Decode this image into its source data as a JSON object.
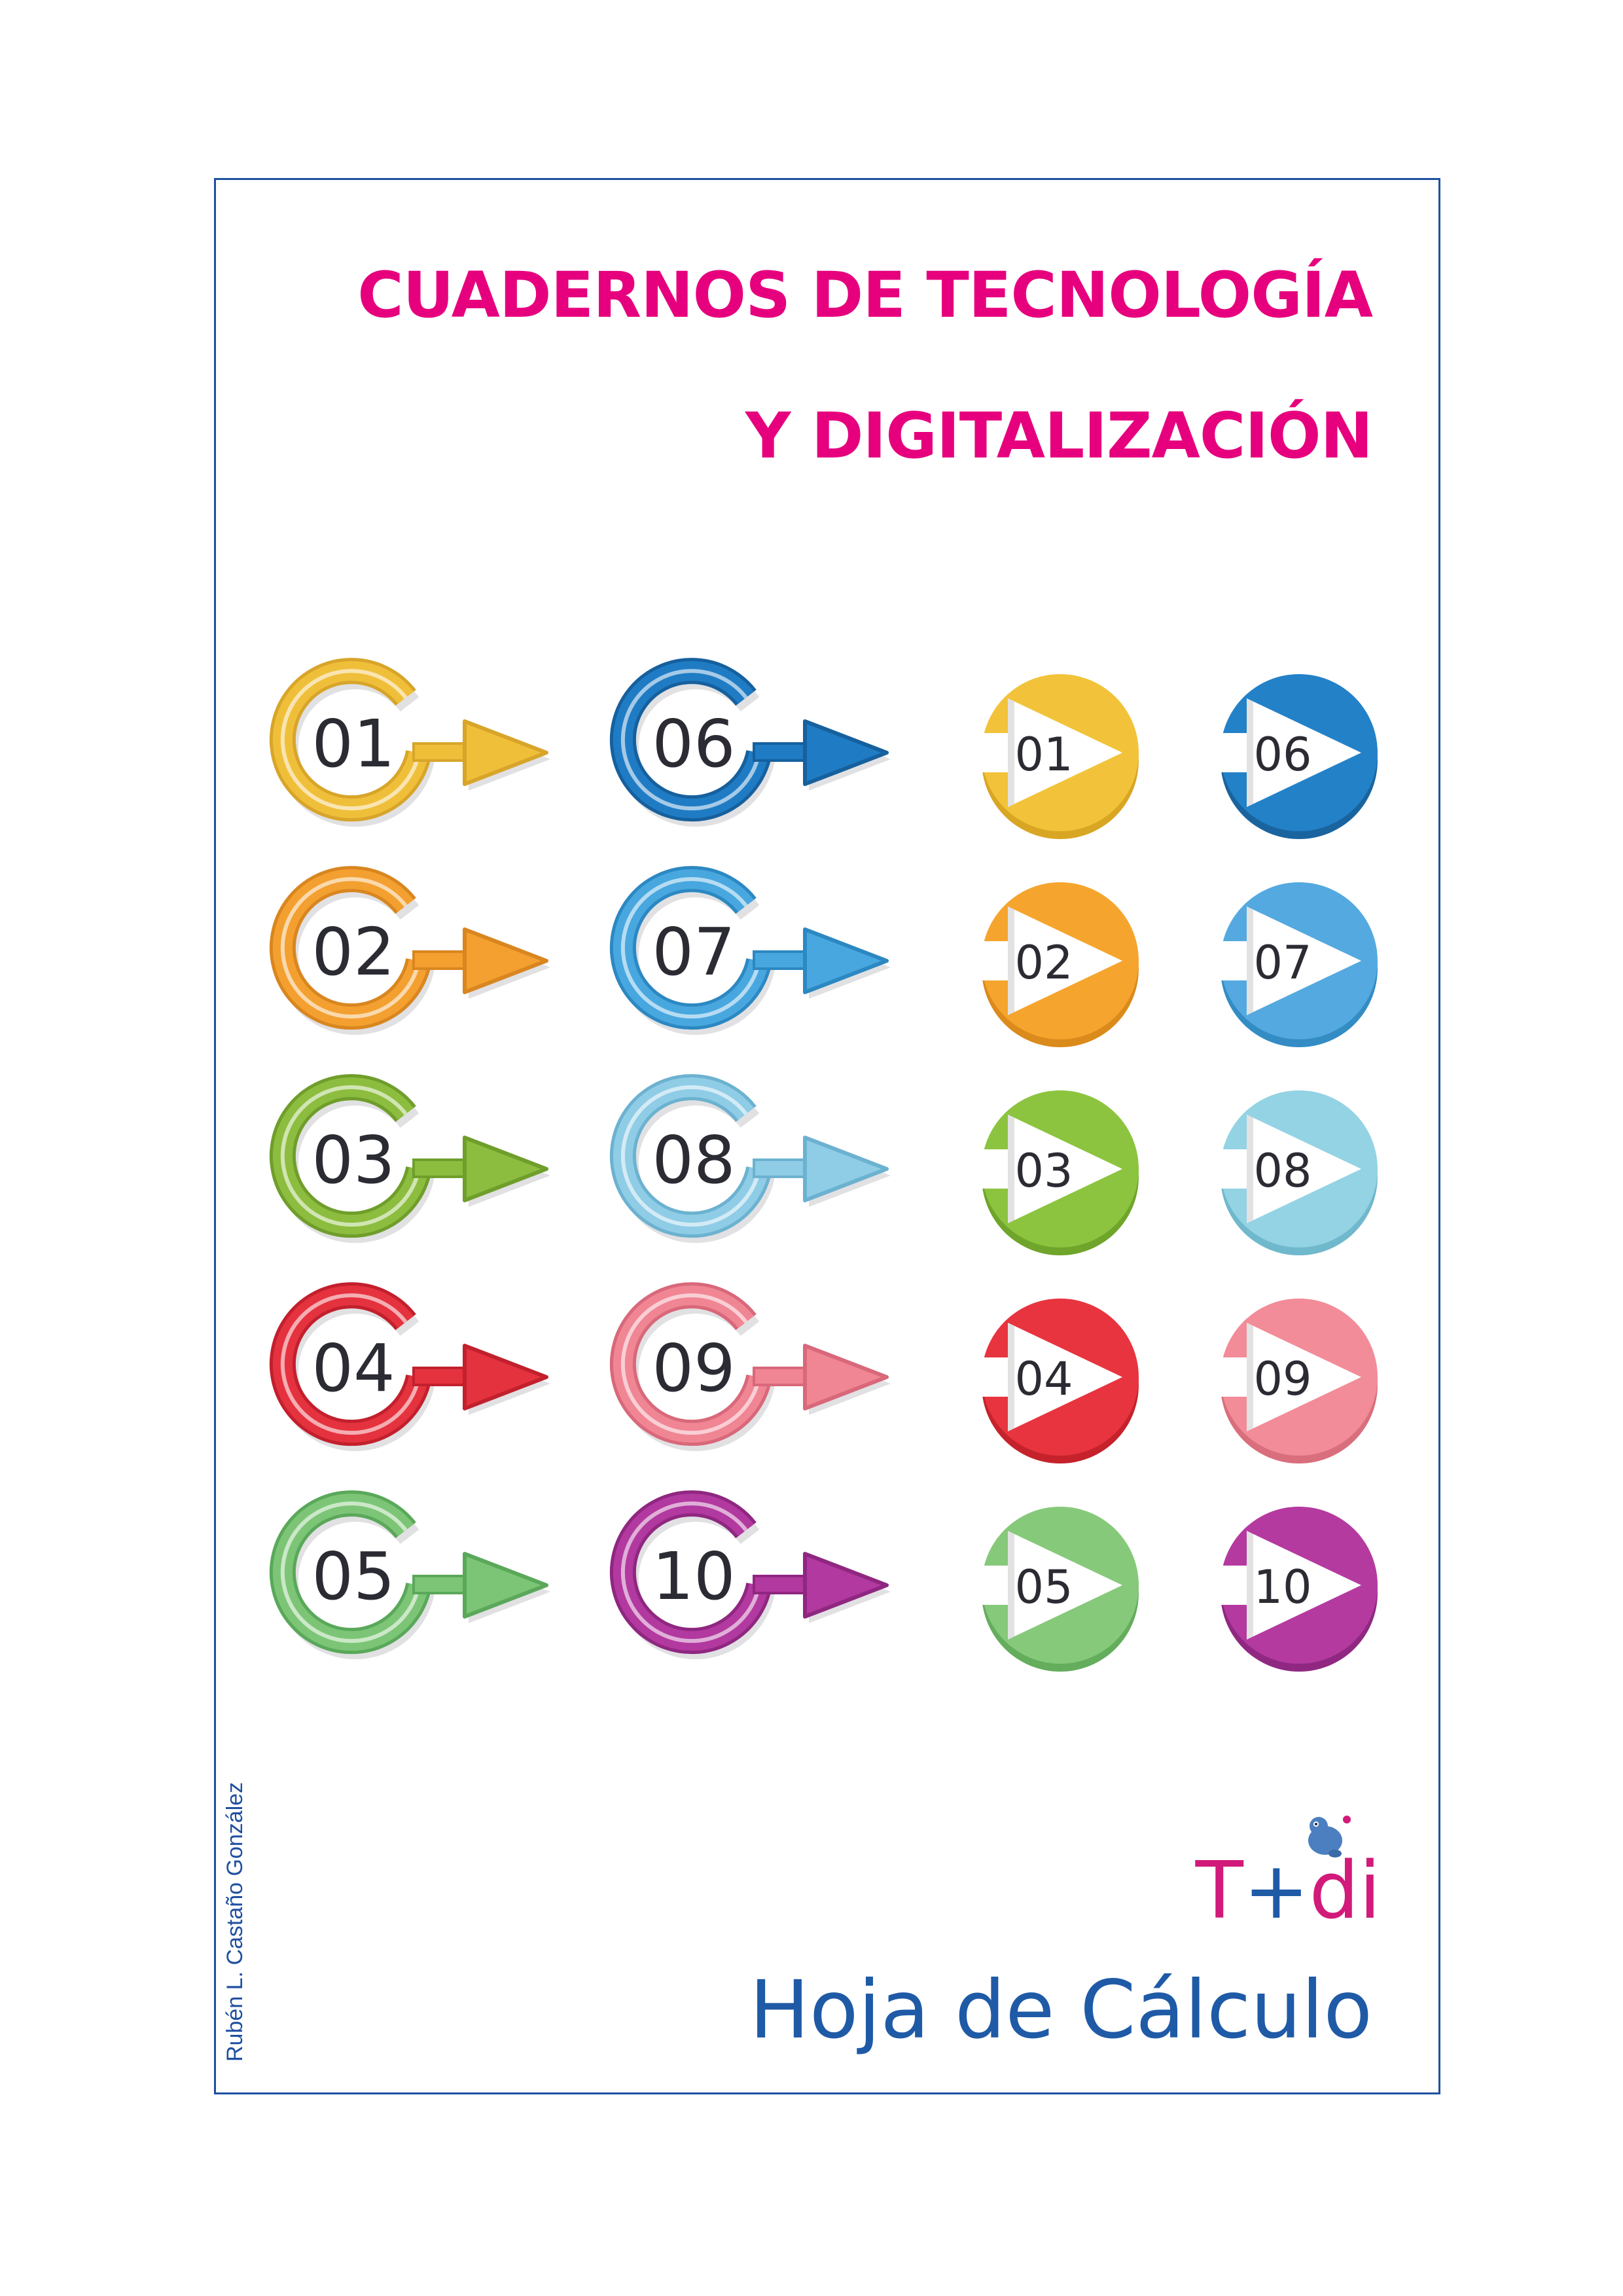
{
  "cover": {
    "title_line1": "CUADERNOS DE TECNOLOGÍA",
    "title_line2": "Y DIGITALIZACIÓN",
    "author": "Rubén L. Castaño González",
    "logo": {
      "t": "T",
      "plus": "+",
      "di": "di"
    },
    "subject": "Hoja de Cálculo"
  },
  "colors": {
    "title": "#e6007e",
    "frame": "#1f4fa0",
    "subject": "#1f5aa6",
    "logo_t": "#d11a7a",
    "logo_plus": "#1f5aa6",
    "logo_di": "#d11a7a"
  },
  "ring_badges": [
    {
      "label": "01",
      "color": "#f0bf3a",
      "dark": "#d8a52a",
      "icon": "ring-arrow-icon"
    },
    {
      "label": "02",
      "color": "#f3a030",
      "dark": "#d98620",
      "icon": "ring-arrow-icon"
    },
    {
      "label": "03",
      "color": "#8cbd3f",
      "dark": "#6f9e2b",
      "icon": "ring-arrow-icon"
    },
    {
      "label": "04",
      "color": "#e5323f",
      "dark": "#c2202d",
      "icon": "ring-arrow-icon"
    },
    {
      "label": "05",
      "color": "#7dc576",
      "dark": "#5aa85a",
      "icon": "ring-arrow-icon"
    },
    {
      "label": "06",
      "color": "#1f7cc4",
      "dark": "#16609e",
      "icon": "ring-arrow-icon"
    },
    {
      "label": "07",
      "color": "#48a7df",
      "dark": "#2c88c2",
      "icon": "ring-arrow-icon"
    },
    {
      "label": "08",
      "color": "#8fcce6",
      "dark": "#6cb2d0",
      "icon": "ring-arrow-icon"
    },
    {
      "label": "09",
      "color": "#f08593",
      "dark": "#d8687a",
      "icon": "ring-arrow-icon"
    },
    {
      "label": "10",
      "color": "#b2399f",
      "dark": "#8f2781",
      "icon": "ring-arrow-icon"
    }
  ],
  "play_discs": [
    {
      "label": "01",
      "color": "#f2c33a",
      "dark": "#d9a624",
      "icon": "play-disc-icon"
    },
    {
      "label": "02",
      "color": "#f5a52e",
      "dark": "#db8a1c",
      "icon": "play-disc-icon"
    },
    {
      "label": "03",
      "color": "#8cc43f",
      "dark": "#6ea52a",
      "icon": "play-disc-icon"
    },
    {
      "label": "04",
      "color": "#e8343f",
      "dark": "#c5222c",
      "icon": "play-disc-icon"
    },
    {
      "label": "05",
      "color": "#86c97a",
      "dark": "#64ad5c",
      "icon": "play-disc-icon"
    },
    {
      "label": "06",
      "color": "#2381c8",
      "dark": "#19649f",
      "icon": "play-disc-icon"
    },
    {
      "label": "07",
      "color": "#54a9e0",
      "dark": "#348cc4",
      "icon": "play-disc-icon"
    },
    {
      "label": "08",
      "color": "#93d3e4",
      "dark": "#70b8cc",
      "icon": "play-disc-icon"
    },
    {
      "label": "09",
      "color": "#f28c98",
      "dark": "#d96e7c",
      "icon": "play-disc-icon"
    },
    {
      "label": "10",
      "color": "#b43aa0",
      "dark": "#902882",
      "icon": "play-disc-icon"
    }
  ]
}
